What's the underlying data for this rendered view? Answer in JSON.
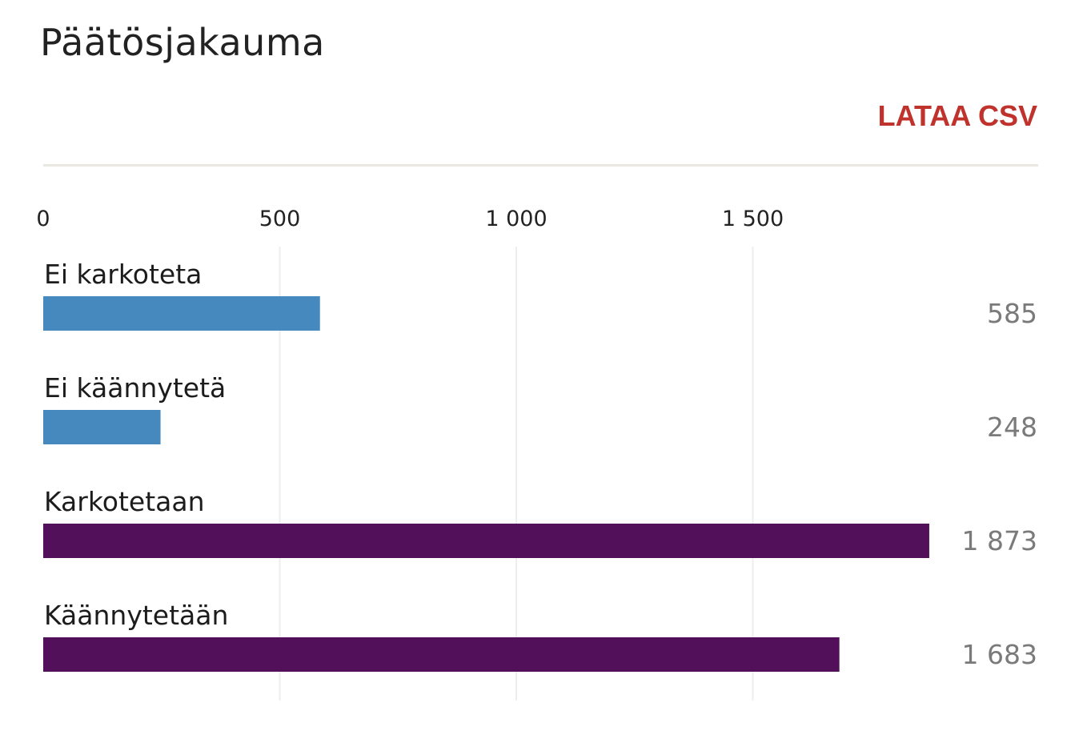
{
  "title": "Päätösjakauma",
  "download_label": "LATAA CSV",
  "colors": {
    "accent": "#c0322c",
    "blue": "#4589bf",
    "purple": "#52105a",
    "grid": "#eeeeee"
  },
  "chart_data": {
    "type": "bar",
    "orientation": "horizontal",
    "categories": [
      "Ei karkoteta",
      "Ei käännytetä",
      "Karkotetaan",
      "Käännytetään"
    ],
    "values": [
      585,
      248,
      1873,
      1683
    ],
    "value_labels": [
      "585",
      "248",
      "1 873",
      "1 683"
    ],
    "bar_colors": [
      "#4589bf",
      "#4589bf",
      "#52105a",
      "#52105a"
    ],
    "x_ticks": [
      0,
      500,
      1000,
      1500
    ],
    "x_tick_labels": [
      "0",
      "500",
      "1 000",
      "1 500"
    ],
    "xlim": [
      0,
      2100
    ],
    "grid": true
  }
}
